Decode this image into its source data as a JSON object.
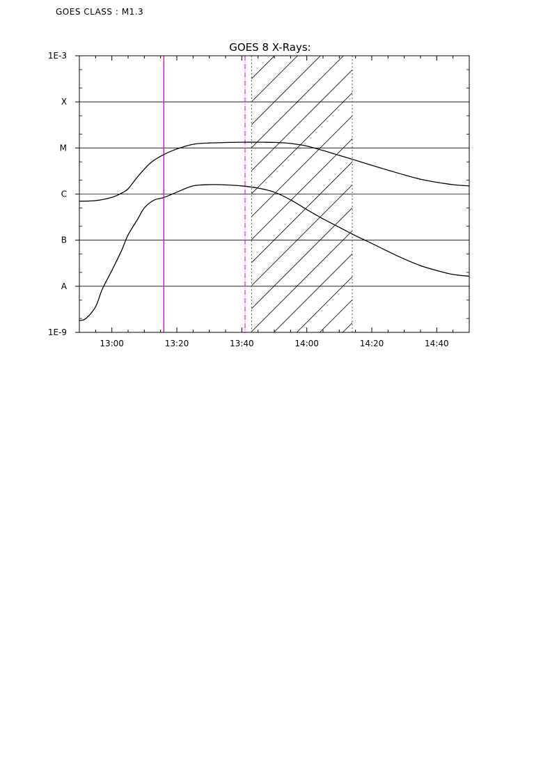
{
  "header": {
    "goes_class": "GOES CLASS : M1.3"
  },
  "chart_data": {
    "type": "line",
    "title": "GOES 8 X-Rays:",
    "xlabel": "",
    "ylabel": "",
    "y_scale": "log",
    "ylim": [
      1e-09,
      0.001
    ],
    "xlim": [
      "12:50",
      "14:50"
    ],
    "x_ticks": [
      "13:00",
      "13:20",
      "13:40",
      "14:00",
      "14:20",
      "14:40"
    ],
    "y_ticks": [
      {
        "value": 1e-09,
        "label": "1E-9"
      },
      {
        "value": 1e-08,
        "label": "A"
      },
      {
        "value": 1e-07,
        "label": "B"
      },
      {
        "value": 1e-06,
        "label": "C"
      },
      {
        "value": 1e-05,
        "label": "M"
      },
      {
        "value": 0.0001,
        "label": "X"
      },
      {
        "value": 0.001,
        "label": "1E-3"
      }
    ],
    "grid": "horizontal",
    "series": [
      {
        "x": [
          "12:50",
          "12:55",
          "13:00",
          "13:03",
          "13:05",
          "13:08",
          "13:12",
          "13:16",
          "13:20",
          "13:25",
          "13:30",
          "13:40",
          "13:45",
          "13:50",
          "13:55",
          "14:00",
          "14:05",
          "14:10",
          "14:15",
          "14:20",
          "14:25",
          "14:30",
          "14:35",
          "14:40",
          "14:45",
          "14:50"
        ],
        "y": [
          7e-07,
          7.2e-07,
          8.5e-07,
          1.05e-06,
          1.3e-06,
          2.4e-06,
          4.8e-06,
          7.2e-06,
          9.5e-06,
          1.2e-05,
          1.28e-05,
          1.33e-05,
          1.33e-05,
          1.32e-05,
          1.25e-05,
          1.1e-05,
          8.8e-06,
          6.9e-06,
          5.4e-06,
          4.2e-06,
          3.3e-06,
          2.6e-06,
          2.1e-06,
          1.8e-06,
          1.6e-06,
          1.5e-06
        ],
        "color": "#000000"
      },
      {
        "x": [
          "12:50",
          "12:52",
          "12:55",
          "12:57",
          "13:00",
          "13:03",
          "13:05",
          "13:08",
          "13:10",
          "13:13",
          "13:16",
          "13:20",
          "13:25",
          "13:30",
          "13:35",
          "13:40",
          "13:45",
          "13:50",
          "13:55",
          "14:00",
          "14:05",
          "14:10",
          "14:15",
          "14:20",
          "14:25",
          "14:30",
          "14:35",
          "14:40",
          "14:45",
          "14:50"
        ],
        "y": [
          1.8e-09,
          2e-09,
          3.6e-09,
          8.5e-09,
          2.2e-08,
          6e-08,
          1.3e-07,
          2.9e-07,
          5e-07,
          7.4e-07,
          8.4e-07,
          1.1e-06,
          1.5e-06,
          1.6e-06,
          1.58e-06,
          1.5e-06,
          1.35e-06,
          1.1e-06,
          7.5e-07,
          4.6e-07,
          2.9e-07,
          1.9e-07,
          1.25e-07,
          8.5e-08,
          5.7e-08,
          3.9e-08,
          2.8e-08,
          2.2e-08,
          1.8e-08,
          1.65e-08
        ],
        "color": "#000000"
      }
    ],
    "markers": [
      {
        "x": "13:16",
        "style": "solid",
        "color": "#cc00cc"
      },
      {
        "x": "13:41",
        "style": "dash-dot",
        "color": "#cc00cc"
      },
      {
        "x": "13:43",
        "style": "dotted",
        "color": "#555555"
      },
      {
        "x": "14:14",
        "style": "dotted",
        "color": "#555555"
      }
    ],
    "shaded_region": {
      "x_start": "13:43",
      "x_end": "14:14",
      "pattern": "diagonal-hatch"
    }
  }
}
